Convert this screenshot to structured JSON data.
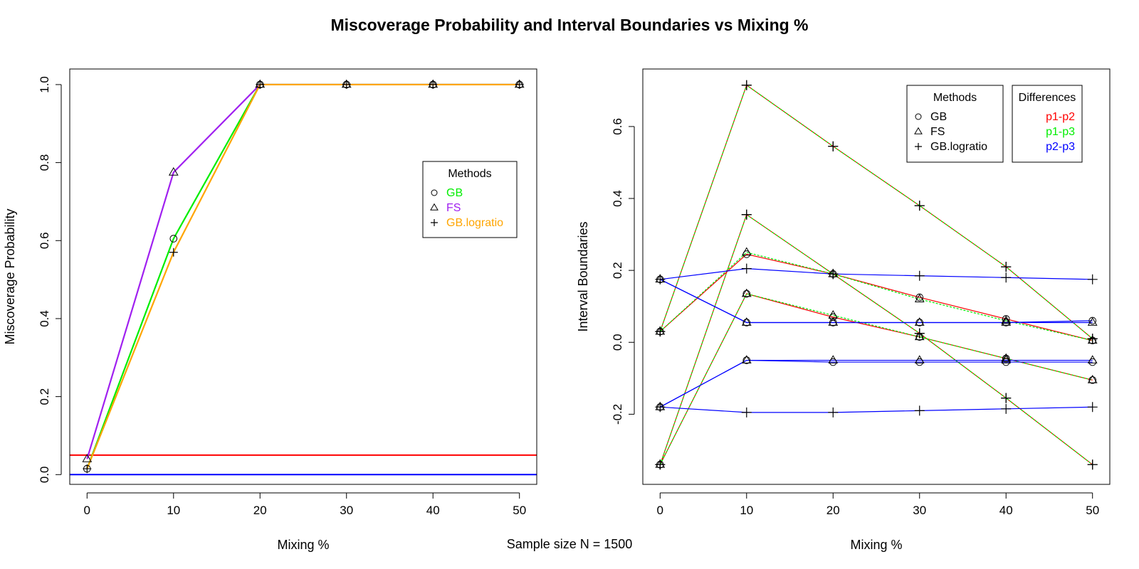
{
  "figure": {
    "title": "Miscoverage Probability and Interval Boundaries vs Mixing %",
    "footnote": "Sample size N = 1500"
  },
  "chart_data": [
    {
      "type": "line",
      "title": "",
      "xlabel": "Mixing %",
      "ylabel": "Miscoverage Probability",
      "xlim": [
        -2,
        52
      ],
      "ylim": [
        -0.025,
        1.04
      ],
      "xticks": [
        0,
        10,
        20,
        30,
        40,
        50
      ],
      "yticks": [
        0.0,
        0.2,
        0.4,
        0.6,
        0.8,
        1.0
      ],
      "x": [
        0,
        10,
        20,
        30,
        40,
        50
      ],
      "series": [
        {
          "name": "GB",
          "color": "#00ee00",
          "marker": "circle",
          "values": [
            0.015,
            0.605,
            1.0,
            1.0,
            1.0,
            1.0
          ]
        },
        {
          "name": "FS",
          "color": "#a020f0",
          "marker": "triangle",
          "values": [
            0.04,
            0.775,
            1.0,
            1.0,
            1.0,
            1.0
          ]
        },
        {
          "name": "GB.logratio",
          "color": "#ffa500",
          "marker": "plus",
          "values": [
            0.015,
            0.57,
            1.0,
            1.0,
            1.0,
            1.0
          ]
        }
      ],
      "hlines": [
        {
          "y": 0.05,
          "color": "#ff0000"
        },
        {
          "y": 0.0,
          "color": "#0000ff"
        }
      ],
      "legend": {
        "title": "Methods",
        "position": "center-right",
        "entries": [
          {
            "label": "GB",
            "marker": "circle",
            "color": "#00ee00"
          },
          {
            "label": "FS",
            "marker": "triangle",
            "color": "#a020f0"
          },
          {
            "label": "GB.logratio",
            "marker": "plus",
            "color": "#ffa500"
          }
        ]
      }
    },
    {
      "type": "line",
      "title": "",
      "xlabel": "Mixing %",
      "ylabel": "Interval Boundaries",
      "xlim": [
        -2,
        52
      ],
      "ylim": [
        -0.395,
        0.76
      ],
      "xticks": [
        0,
        10,
        20,
        30,
        40,
        50
      ],
      "yticks": [
        -0.2,
        0.0,
        0.2,
        0.4,
        0.6
      ],
      "x": [
        0,
        10,
        20,
        30,
        40,
        50
      ],
      "series": [
        {
          "name": "p1-p2",
          "color": "#ff0000",
          "marker": "plus",
          "values": [
            0.03,
            0.715,
            0.545,
            0.38,
            0.21,
            0.01
          ]
        },
        {
          "name": "p1-p3",
          "color": "#00ee00",
          "marker": "plus",
          "values": [
            0.03,
            0.715,
            0.545,
            0.38,
            0.21,
            0.01
          ]
        },
        {
          "name": "p1-p2",
          "color": "#ff0000",
          "marker": "plus",
          "values": [
            -0.34,
            0.355,
            0.19,
            0.025,
            -0.155,
            -0.34
          ]
        },
        {
          "name": "p1-p3",
          "color": "#00ee00",
          "marker": "plus",
          "values": [
            -0.34,
            0.355,
            0.19,
            0.025,
            -0.155,
            -0.34
          ]
        },
        {
          "name": "p1-p2",
          "color": "#ff0000",
          "marker": "circle",
          "values": [
            0.03,
            0.245,
            0.19,
            0.125,
            0.065,
            0.005
          ]
        },
        {
          "name": "p1-p3",
          "color": "#00ee00",
          "marker": "triangle",
          "values": [
            0.03,
            0.25,
            0.19,
            0.12,
            0.06,
            0.005
          ]
        },
        {
          "name": "p1-p2",
          "color": "#ff0000",
          "marker": "circle",
          "values": [
            -0.34,
            0.135,
            0.07,
            0.015,
            -0.045,
            -0.105
          ]
        },
        {
          "name": "p1-p3",
          "color": "#00ee00",
          "marker": "triangle",
          "values": [
            -0.34,
            0.135,
            0.075,
            0.015,
            -0.045,
            -0.105
          ]
        },
        {
          "name": "p2-p3",
          "color": "#0000ff",
          "marker": "plus",
          "values": [
            0.175,
            0.205,
            0.19,
            0.185,
            0.18,
            0.175
          ]
        },
        {
          "name": "p2-p3",
          "color": "#0000ff",
          "marker": "plus",
          "values": [
            -0.18,
            -0.195,
            -0.195,
            -0.19,
            -0.185,
            -0.18
          ]
        },
        {
          "name": "p2-p3",
          "color": "#0000ff",
          "marker": "circle",
          "values": [
            0.175,
            0.055,
            0.055,
            0.055,
            0.055,
            0.06
          ]
        },
        {
          "name": "p2-p3",
          "color": "#0000ff",
          "marker": "triangle",
          "values": [
            0.175,
            0.055,
            0.055,
            0.055,
            0.055,
            0.055
          ]
        },
        {
          "name": "p2-p3",
          "color": "#0000ff",
          "marker": "circle",
          "values": [
            -0.18,
            -0.05,
            -0.055,
            -0.055,
            -0.055,
            -0.055
          ]
        },
        {
          "name": "p2-p3",
          "color": "#0000ff",
          "marker": "triangle",
          "values": [
            -0.18,
            -0.05,
            -0.05,
            -0.05,
            -0.05,
            -0.05
          ]
        }
      ],
      "legends": [
        {
          "title": "Methods",
          "position": "top-right",
          "entries": [
            {
              "label": "GB",
              "marker": "circle",
              "color": "#000000"
            },
            {
              "label": "FS",
              "marker": "triangle",
              "color": "#000000"
            },
            {
              "label": "GB.logratio",
              "marker": "plus",
              "color": "#000000"
            }
          ]
        },
        {
          "title": "Differences",
          "position": "top-right",
          "entries": [
            {
              "label": "p1-p2",
              "color": "#ff0000"
            },
            {
              "label": "p1-p3",
              "color": "#00ee00"
            },
            {
              "label": "p2-p3",
              "color": "#0000ff"
            }
          ]
        }
      ]
    }
  ]
}
